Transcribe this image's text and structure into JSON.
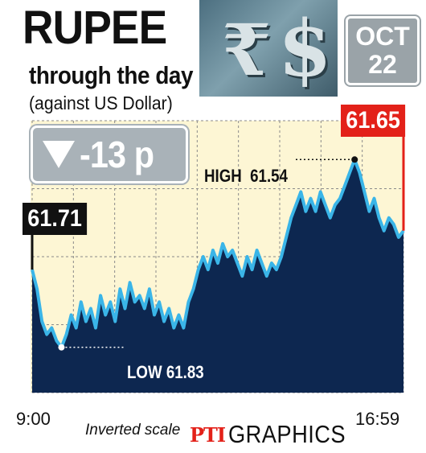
{
  "header": {
    "title": "RUPEE",
    "subtitle": "through the day",
    "note": "(against US Dollar)",
    "date_month": "OCT",
    "date_day": "22",
    "icon_rupee": "₹",
    "icon_dollar": "$"
  },
  "summary": {
    "change": "-13 p",
    "direction": "down"
  },
  "footer": {
    "scale_note": "Inverted scale",
    "credit_brand": "PTI",
    "credit_text": "GRAPHICS"
  },
  "colors": {
    "area_fill": "#0d2750",
    "line": "#3ab5e8",
    "plot_bg": "#fdf6d4",
    "close_accent": "#e32119",
    "open_box": "#111111",
    "change_box": "#a9b2b8"
  },
  "chart_data": {
    "type": "area",
    "inverted_y": true,
    "x_labels": [
      "9:00",
      "16:59"
    ],
    "ylim": [
      61.9,
      61.48
    ],
    "grid": true,
    "open": {
      "label": "61.71",
      "value": 61.71
    },
    "close": {
      "label": "61.65",
      "value": 61.65
    },
    "high": {
      "label": "HIGH",
      "value_text": "61.54",
      "value": 61.54
    },
    "low": {
      "label": "LOW",
      "value_text": "61.83",
      "value": 61.83
    },
    "values": [
      61.71,
      61.74,
      61.79,
      61.81,
      61.8,
      61.82,
      61.83,
      61.81,
      61.78,
      61.8,
      61.76,
      61.79,
      61.77,
      61.8,
      61.75,
      61.78,
      61.76,
      61.79,
      61.74,
      61.77,
      61.73,
      61.76,
      61.75,
      61.77,
      61.74,
      61.78,
      61.76,
      61.79,
      61.77,
      61.8,
      61.78,
      61.8,
      61.76,
      61.74,
      61.71,
      61.69,
      61.71,
      61.68,
      61.7,
      61.67,
      61.69,
      61.68,
      61.7,
      61.72,
      61.69,
      61.71,
      61.68,
      61.7,
      61.72,
      61.7,
      61.71,
      61.69,
      61.66,
      61.63,
      61.61,
      61.59,
      61.62,
      61.6,
      61.62,
      61.59,
      61.61,
      61.63,
      61.61,
      61.6,
      61.58,
      61.56,
      61.54,
      61.56,
      61.59,
      61.62,
      61.6,
      61.63,
      61.65,
      61.63,
      61.64,
      61.66,
      61.65
    ]
  }
}
